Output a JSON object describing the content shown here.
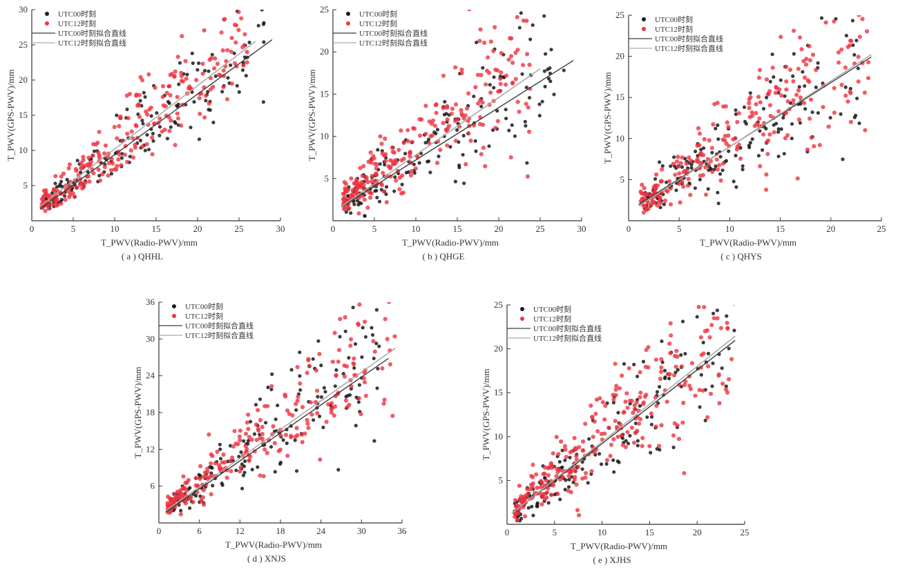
{
  "colors": {
    "series_00": "#1a1a1a",
    "series_12": "#ee3340",
    "fit_00": "#3a3a3a",
    "fit_12": "#aaaaaa"
  },
  "chart_data": [
    {
      "type": "scatter",
      "caption": "( a ) QHHL",
      "xlabel": "T_PWV(Radio-PWV)/mm",
      "ylabel": "T_PWV(GPS-PWV)/mm",
      "xlim": [
        0,
        30
      ],
      "ylim": [
        0,
        30
      ],
      "xticks": [
        0,
        5,
        10,
        15,
        20,
        25,
        30
      ],
      "yticks": [
        5,
        10,
        15,
        20,
        25,
        30
      ],
      "legend": [
        "UTC00时刻",
        "UTC12时刻",
        "UTC00时刻拟合直线",
        "UTC12时刻拟合直线"
      ],
      "legend_position": "top-left",
      "series": [
        {
          "values": {
            "x_range": [
              1.5,
              28
            ],
            "slope": 0.88,
            "intercept": 0.9,
            "spread": 0.09,
            "n": 170
          }
        },
        {
          "values": {
            "x_range": [
              1.2,
              26
            ],
            "slope": 0.92,
            "intercept": 1.0,
            "spread": 0.09,
            "n": 260
          }
        }
      ],
      "fits": [
        {
          "slope": 0.86,
          "intercept": 0.8,
          "x_range": [
            1,
            29
          ]
        },
        {
          "slope": 0.9,
          "intercept": 1.2,
          "x_range": [
            1,
            27
          ]
        }
      ]
    },
    {
      "type": "scatter",
      "caption": "( b ) QHGE",
      "xlabel": "T_PWV(Radio-PWV)/mm",
      "ylabel": "T_PWV(GPS-PWV)/mm",
      "xlim": [
        0,
        30
      ],
      "ylim": [
        0,
        25
      ],
      "xticks": [
        0,
        5,
        10,
        15,
        20,
        25,
        30
      ],
      "yticks": [
        5,
        10,
        15,
        20,
        25
      ],
      "legend": [
        "UTC00时刻",
        "UTC12时刻",
        "UTC00时刻拟合直线",
        "UTC12时刻拟合直线"
      ],
      "legend_position": "top-left",
      "series": [
        {
          "values": {
            "x_range": [
              1.5,
              28
            ],
            "slope": 0.66,
            "intercept": 1.0,
            "spread": 0.16,
            "n": 170
          }
        },
        {
          "values": {
            "x_range": [
              1.2,
              24
            ],
            "slope": 0.72,
            "intercept": 1.4,
            "spread": 0.16,
            "n": 260
          }
        }
      ],
      "fits": [
        {
          "slope": 0.62,
          "intercept": 1.0,
          "x_range": [
            1,
            29
          ]
        },
        {
          "slope": 0.68,
          "intercept": 1.0,
          "x_range": [
            1,
            25
          ]
        }
      ]
    },
    {
      "type": "scatter",
      "caption": "( c ) QHYS",
      "xlabel": "T_PWV(Radio-PWV)/mm",
      "ylabel": "T_PWV(GPS-PWV)/mm",
      "xlim": [
        0,
        25
      ],
      "ylim": [
        0,
        25
      ],
      "xticks": [
        0,
        5,
        10,
        15,
        20,
        25
      ],
      "yticks": [
        5,
        10,
        15,
        20,
        25
      ],
      "legend": [
        "UTC00时刻",
        "UTC12时刻",
        "UTC00时刻拟合直线",
        "UTC12时刻拟合直线"
      ],
      "legend_position": "top-left",
      "series": [
        {
          "values": {
            "x_range": [
              1.5,
              23
            ],
            "slope": 0.78,
            "intercept": 1.1,
            "spread": 0.18,
            "n": 170
          }
        },
        {
          "values": {
            "x_range": [
              1.2,
              24
            ],
            "slope": 0.8,
            "intercept": 1.2,
            "spread": 0.16,
            "n": 260
          }
        }
      ],
      "fits": [
        {
          "slope": 0.78,
          "intercept": 1.2,
          "x_range": [
            1,
            24
          ]
        },
        {
          "slope": 0.8,
          "intercept": 1.0,
          "x_range": [
            1,
            24
          ]
        }
      ]
    },
    {
      "type": "scatter",
      "caption": "( d ) XNJS",
      "xlabel": "T_PWV(Radio-PWV)/mm",
      "ylabel": "T_PWV(GPS-PWV)/mm",
      "xlim": [
        0,
        36
      ],
      "ylim": [
        0,
        36
      ],
      "xticks": [
        0,
        6,
        12,
        18,
        24,
        30,
        36
      ],
      "yticks": [
        6,
        12,
        18,
        24,
        30,
        36
      ],
      "legend": [
        "UTC00时刻",
        "UTC12时刻",
        "UTC00时刻拟合直线",
        "UTC12时刻拟合直线"
      ],
      "legend_position": "top-left",
      "series": [
        {
          "values": {
            "x_range": [
              1.5,
              33
            ],
            "slope": 0.78,
            "intercept": 1.2,
            "spread": 0.13,
            "n": 170
          }
        },
        {
          "values": {
            "x_range": [
              1.2,
              35
            ],
            "slope": 0.8,
            "intercept": 1.5,
            "spread": 0.12,
            "n": 260
          }
        }
      ],
      "fits": [
        {
          "slope": 0.76,
          "intercept": 1.0,
          "x_range": [
            1,
            34
          ]
        },
        {
          "slope": 0.78,
          "intercept": 1.2,
          "x_range": [
            1,
            35
          ]
        }
      ]
    },
    {
      "type": "scatter",
      "caption": "( e ) XJHS",
      "xlabel": "T_PWV(Radio-PWV)/mm",
      "ylabel": "T_PWV(GPS-PWV)/mm",
      "xlim": [
        0,
        25
      ],
      "ylim": [
        0,
        25
      ],
      "xticks": [
        0,
        5,
        10,
        15,
        20,
        25
      ],
      "yticks": [
        5,
        10,
        15,
        20,
        25
      ],
      "legend": [
        "UTC00时刻",
        "UTC12时刻",
        "UTC00时刻拟合直线",
        "UTC12时刻拟合直线"
      ],
      "legend_position": "top-left",
      "series": [
        {
          "values": {
            "x_range": [
              0.8,
              24
            ],
            "slope": 0.86,
            "intercept": 0.8,
            "spread": 0.14,
            "n": 180
          }
        },
        {
          "values": {
            "x_range": [
              0.8,
              24
            ],
            "slope": 0.88,
            "intercept": 0.9,
            "spread": 0.14,
            "n": 280
          }
        }
      ],
      "fits": [
        {
          "slope": 0.84,
          "intercept": 0.8,
          "x_range": [
            0.5,
            24
          ]
        },
        {
          "slope": 0.86,
          "intercept": 0.8,
          "x_range": [
            0.5,
            24
          ]
        }
      ]
    }
  ]
}
